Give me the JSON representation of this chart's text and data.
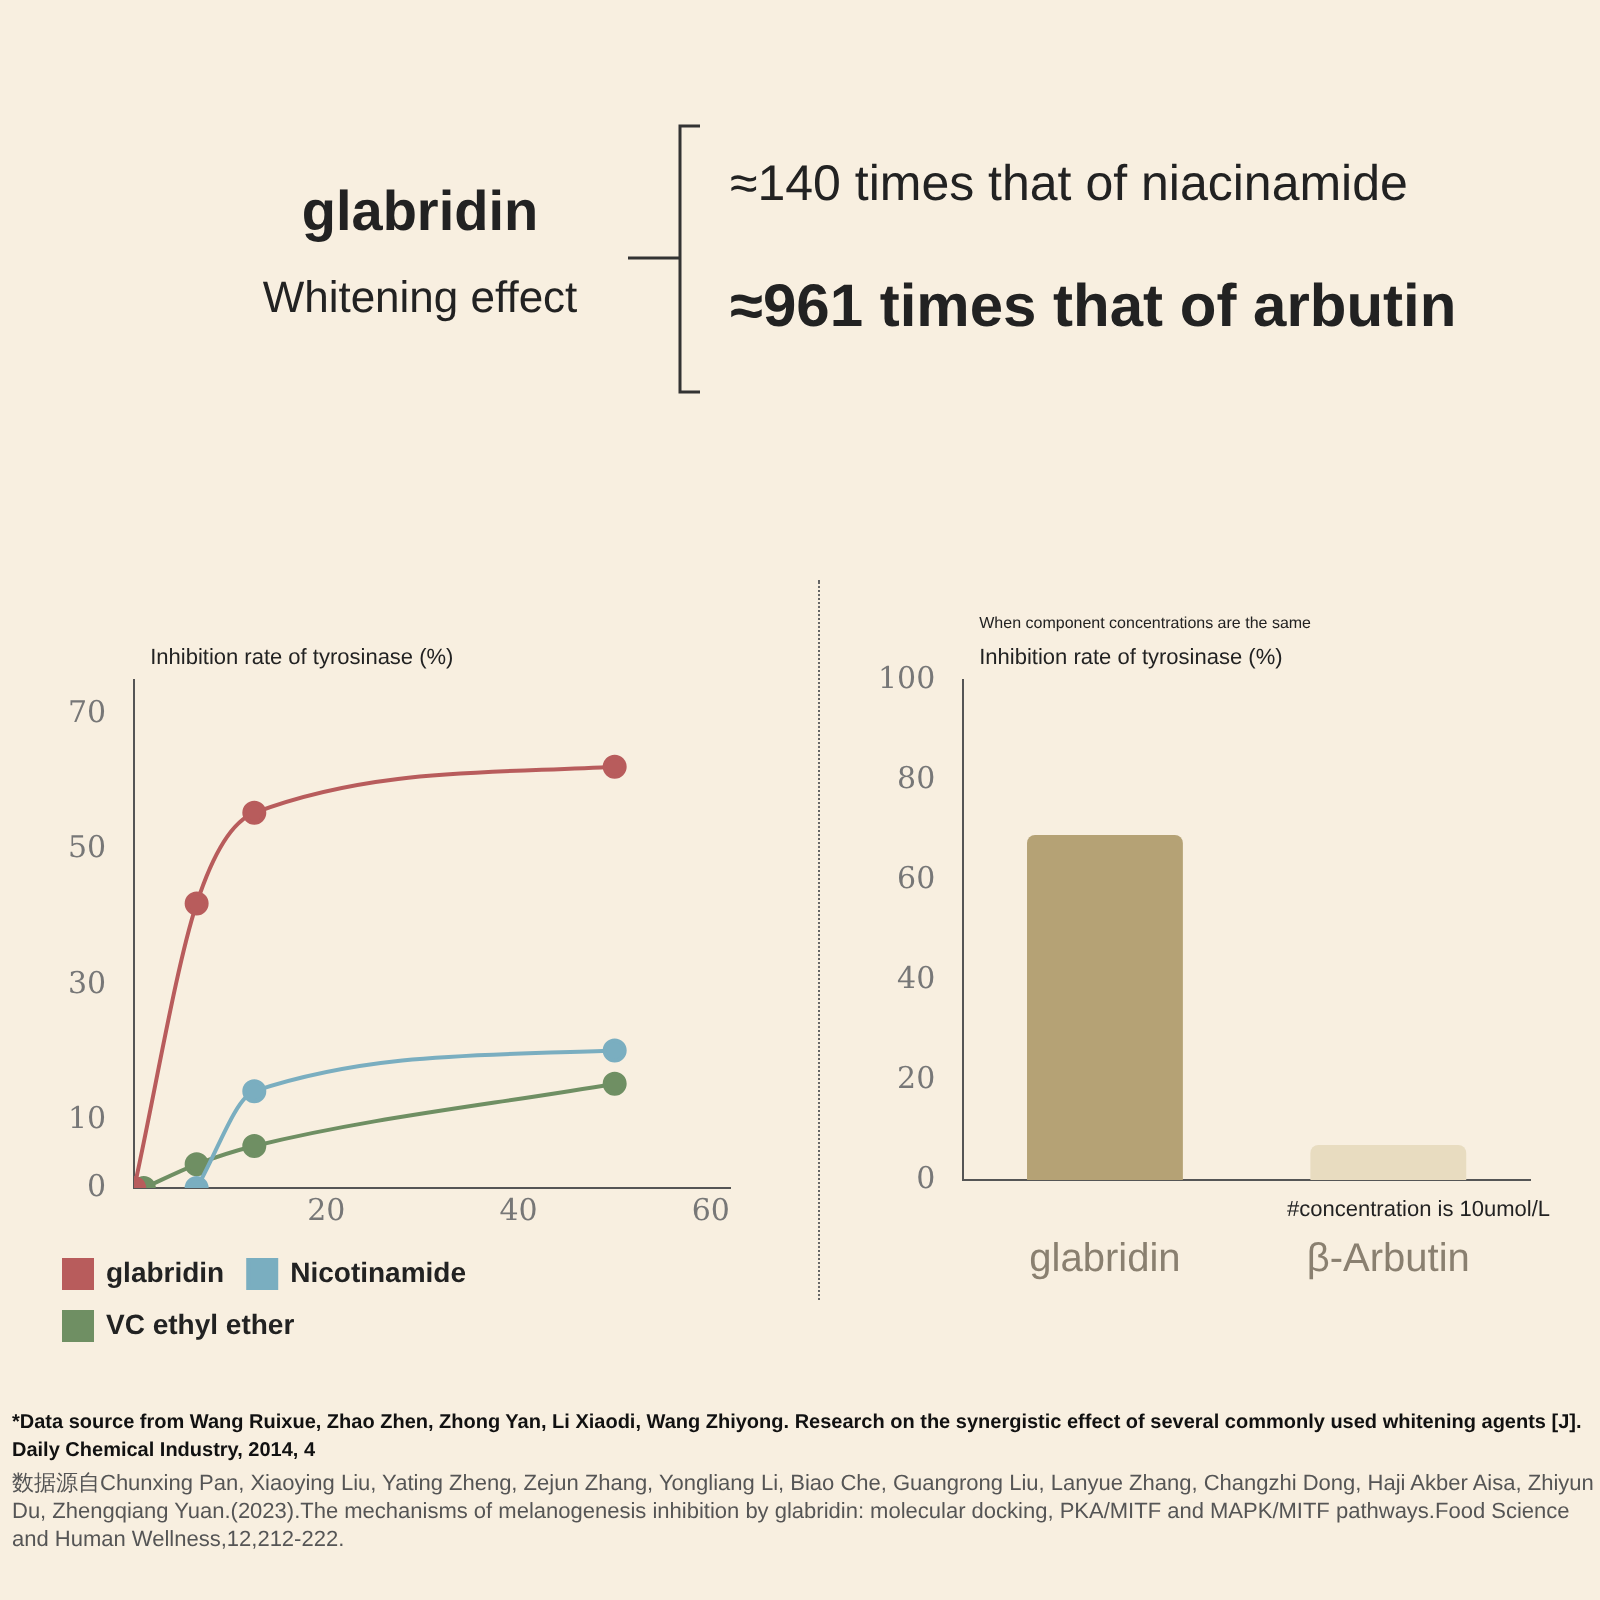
{
  "chart_data": [
    {
      "type": "other",
      "title": "glabridin",
      "subtitle": "Whitening effect",
      "annotations": [
        "≈140 times that of niacinamide",
        "≈961 times that of arbutin"
      ]
    },
    {
      "type": "line",
      "ylabel": "Inhibition rate of tyrosinase (%)",
      "xlim": [
        0,
        62
      ],
      "xticks": [
        20,
        40,
        60
      ],
      "ylim": [
        0,
        75
      ],
      "yticks": [
        0,
        10,
        30,
        50,
        70
      ],
      "legend": "bottom",
      "marker": "circle",
      "series": [
        {
          "name": "glabridin",
          "color": "#b85c5c",
          "x": [
            0,
            6.5,
            12.5,
            50
          ],
          "values": [
            0,
            42,
            55.4,
            62.2
          ]
        },
        {
          "name": "Nicotinamide",
          "color": "#7aaec0",
          "x": [
            6.5,
            12.5,
            50
          ],
          "values": [
            0,
            14.3,
            20.3
          ]
        },
        {
          "name": "VC ethyl ether",
          "color": "#6f8f63",
          "x": [
            1,
            6.5,
            12.5,
            50
          ],
          "values": [
            0,
            3.5,
            6.2,
            15.4
          ]
        }
      ]
    },
    {
      "type": "bar",
      "ylabel": "Inhibition rate of tyrosinase (%)",
      "categories": [
        "glabridin",
        "β-Arbutin"
      ],
      "values": [
        69,
        7
      ],
      "colors": [
        "#b5a275",
        "#e8dcc0"
      ],
      "ylim": [
        0,
        100
      ],
      "yticks": [
        0,
        20,
        40,
        60,
        80,
        100
      ],
      "annotations": [
        "When component concentrations are the same",
        "#concentration is 10umol/L"
      ]
    },
    {
      "type": "other",
      "annotations": [
        "*Data source from Wang Ruixue, Zhao Zhen, Zhong Yan, Li Xiaodi, Wang Zhiyong. Research on the synergistic effect of several commonly used whitening agents [J]. Daily Chemical Industry, 2014, 4",
        "数据源自Chunxing Pan, Xiaoying Liu, Yating Zheng, Zejun Zhang, Yongliang Li, Biao Che, Guangrong Liu, Lanyue Zhang, Changzhi Dong, Haji Akber Aisa, Zhiyun Du, Zhengqiang Yuan.(2023).The mechanisms of melanogenesis inhibition by glabridin: molecular docking, PKA/MITF and MAPK/MITF pathways.Food Science and Human Wellness,12,212-222."
      ]
    }
  ]
}
